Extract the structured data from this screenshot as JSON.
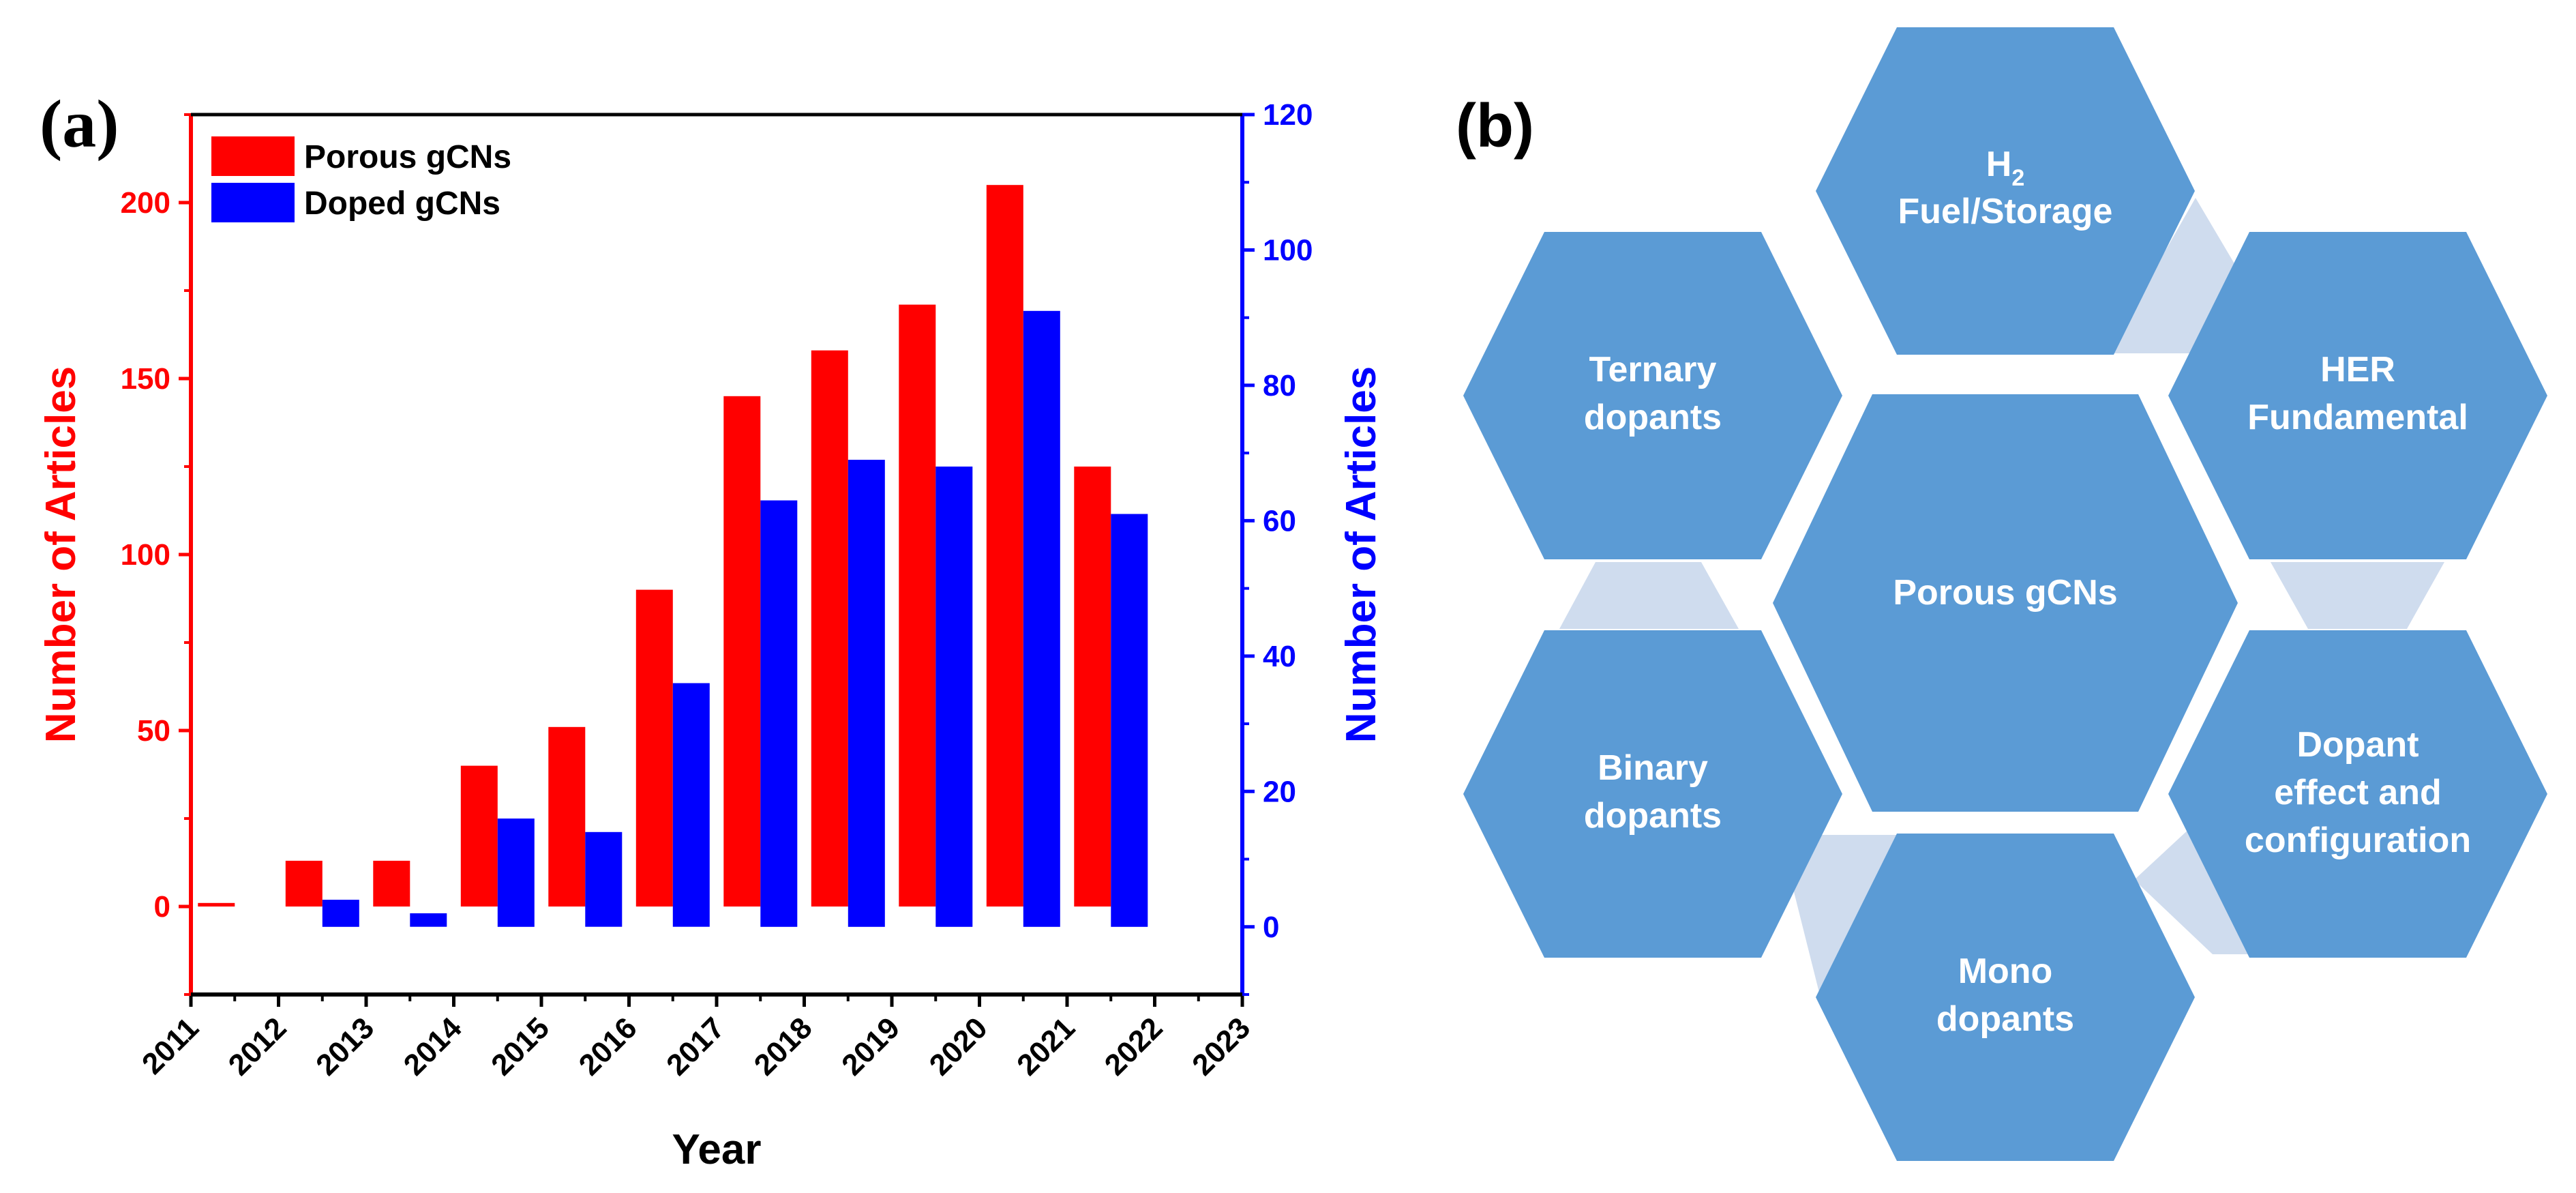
{
  "colors": {
    "porous": "#ff0000",
    "doped": "#0000ff",
    "hex_fill": "#5b9bd5",
    "connector": "#cfdcee"
  },
  "chart_data": {
    "type": "bar",
    "panel_label": "(a)",
    "title": "",
    "xlabel": "Year",
    "ylabel_left": "Number of Articles",
    "ylabel_right": "Number of Articles",
    "x_ticks": [
      "2011",
      "2012",
      "2013",
      "2014",
      "2015",
      "2016",
      "2017",
      "2018",
      "2019",
      "2020",
      "2021",
      "2022",
      "2023"
    ],
    "x_range": [
      2011,
      2023
    ],
    "ylim_left": [
      -25,
      225
    ],
    "yticks_left": [
      0,
      50,
      100,
      150,
      200
    ],
    "ylim_right": [
      -10,
      120
    ],
    "yticks_right": [
      0,
      20,
      40,
      60,
      80,
      100,
      120
    ],
    "legend_position": "top-left",
    "series": [
      {
        "name": "Porous gCNs",
        "axis": "left",
        "color": "#ff0000",
        "x": [
          2011.5,
          2012.5,
          2013.5,
          2014.5,
          2015.5,
          2016.5,
          2017.5,
          2018.5,
          2019.5,
          2020.5,
          2021.5
        ],
        "values": [
          1,
          13,
          13,
          40,
          51,
          90,
          145,
          158,
          171,
          205,
          125
        ]
      },
      {
        "name": "Doped gCNs",
        "axis": "right",
        "color": "#0000ff",
        "x": [
          2012.5,
          2013.5,
          2014.5,
          2015.5,
          2016.5,
          2017.5,
          2018.5,
          2019.5,
          2020.5,
          2021.5
        ],
        "values": [
          4,
          2,
          16,
          14,
          36,
          63,
          69,
          68,
          91,
          61
        ]
      }
    ]
  },
  "panel_b": {
    "label": "(b)",
    "center": "Porous gCNs",
    "hexagons": {
      "top": {
        "h_letter": "H",
        "h_sub": "2",
        "line2": "Fuel/Storage"
      },
      "upper_right": [
        "HER",
        "Fundamental"
      ],
      "lower_right": [
        "Dopant",
        "effect and",
        "configuration"
      ],
      "bottom": [
        "Mono",
        "dopants"
      ],
      "lower_left": [
        "Binary",
        "dopants"
      ],
      "upper_left": [
        "Ternary",
        "dopants"
      ]
    }
  }
}
